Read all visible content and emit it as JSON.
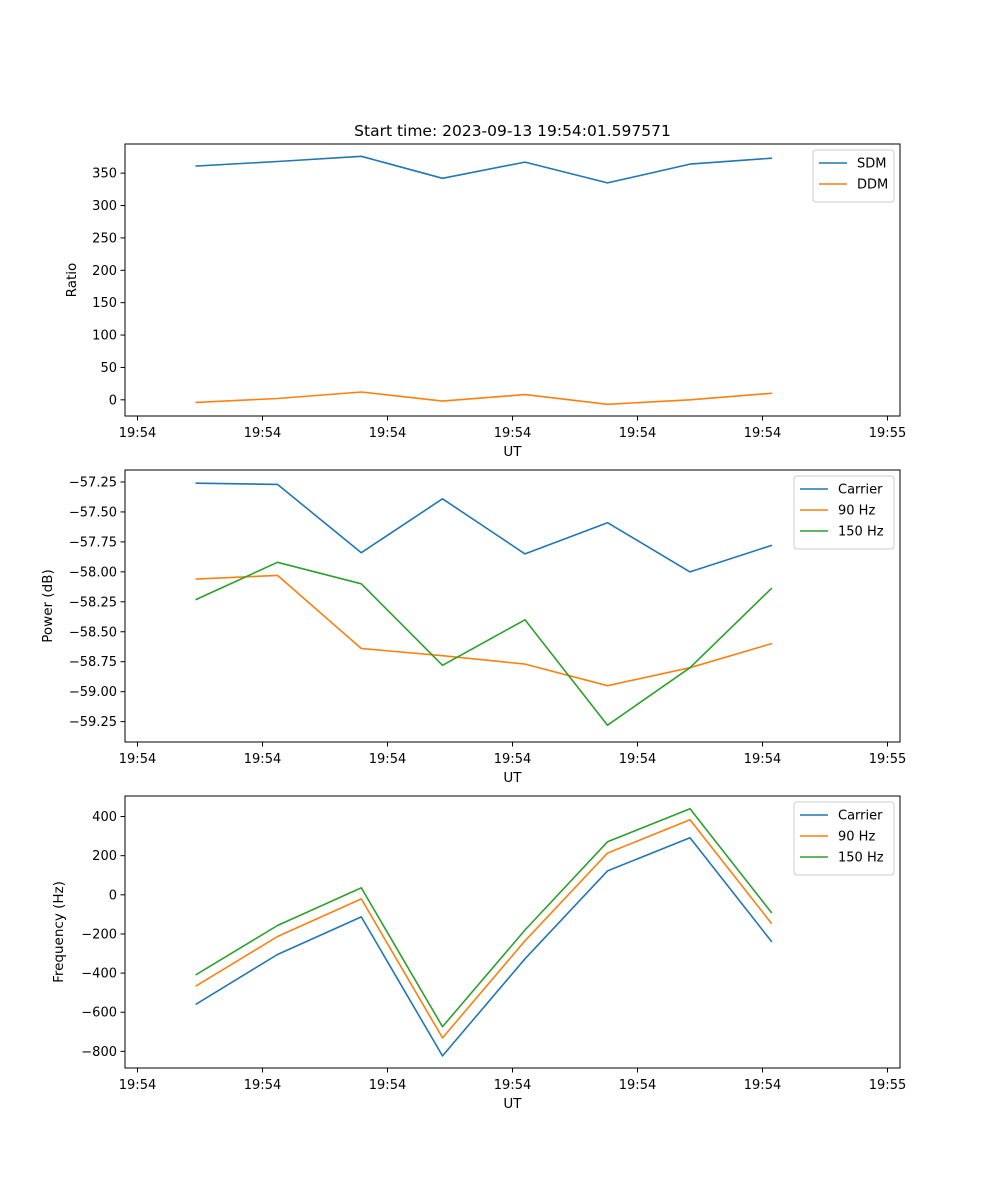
{
  "title": "Start time: 2023-09-13 19:54:01.597571",
  "chart_data": [
    {
      "type": "line",
      "xlabel": "UT",
      "ylabel": "Ratio",
      "ylim": [
        -25,
        395
      ],
      "yticks": [
        0,
        50,
        100,
        150,
        200,
        250,
        300,
        350
      ],
      "ytick_labels": [
        "0",
        "50",
        "100",
        "150",
        "200",
        "250",
        "300",
        "350"
      ],
      "xticks": [
        0,
        1,
        2,
        3,
        4,
        5,
        6
      ],
      "xtick_labels": [
        "19:54",
        "19:54",
        "19:54",
        "19:54",
        "19:54",
        "19:54",
        "19:55"
      ],
      "xlim": [
        -0.1,
        6.1
      ],
      "x": [
        0.47,
        1.12,
        1.79,
        2.44,
        3.1,
        3.76,
        4.42,
        5.07
      ],
      "legend_position": "top-right",
      "series": [
        {
          "name": "SDM",
          "color": "#1f77b4",
          "values": [
            361,
            368,
            376,
            342,
            367,
            335,
            364,
            373
          ]
        },
        {
          "name": "DDM",
          "color": "#ff7f0e",
          "values": [
            -4,
            2,
            12,
            -2,
            8,
            -7,
            0,
            10
          ]
        }
      ]
    },
    {
      "type": "line",
      "xlabel": "UT",
      "ylabel": "Power (dB)",
      "ylim": [
        -59.42,
        -57.15
      ],
      "yticks": [
        -57.25,
        -57.5,
        -57.75,
        -58.0,
        -58.25,
        -58.5,
        -58.75,
        -59.0,
        -59.25
      ],
      "ytick_labels": [
        "−57.25",
        "−57.50",
        "−57.75",
        "−58.00",
        "−58.25",
        "−58.50",
        "−58.75",
        "−59.00",
        "−59.25"
      ],
      "xticks": [
        0,
        1,
        2,
        3,
        4,
        5,
        6
      ],
      "xtick_labels": [
        "19:54",
        "19:54",
        "19:54",
        "19:54",
        "19:54",
        "19:54",
        "19:55"
      ],
      "xlim": [
        -0.1,
        6.1
      ],
      "x": [
        0.47,
        1.12,
        1.79,
        2.44,
        3.1,
        3.76,
        4.42,
        5.07
      ],
      "legend_position": "top-right",
      "series": [
        {
          "name": "Carrier",
          "color": "#1f77b4",
          "values": [
            -57.26,
            -57.27,
            -57.84,
            -57.39,
            -57.85,
            -57.59,
            -58.0,
            -57.78
          ]
        },
        {
          "name": "90 Hz",
          "color": "#ff7f0e",
          "values": [
            -58.06,
            -58.03,
            -58.64,
            -58.7,
            -58.77,
            -58.95,
            -58.8,
            -58.6
          ]
        },
        {
          "name": "150 Hz",
          "color": "#2ca02c",
          "values": [
            -58.23,
            -57.92,
            -58.1,
            -58.78,
            -58.4,
            -59.28,
            -58.8,
            -58.14
          ]
        }
      ]
    },
    {
      "type": "line",
      "xlabel": "UT",
      "ylabel": "Frequency (Hz)",
      "ylim": [
        -885,
        505
      ],
      "yticks": [
        -800,
        -600,
        -400,
        -200,
        0,
        200,
        400
      ],
      "ytick_labels": [
        "−800",
        "−600",
        "−400",
        "−200",
        "0",
        "200",
        "400"
      ],
      "xticks": [
        0,
        1,
        2,
        3,
        4,
        5,
        6
      ],
      "xtick_labels": [
        "19:54",
        "19:54",
        "19:54",
        "19:54",
        "19:54",
        "19:54",
        "19:55"
      ],
      "xlim": [
        -0.1,
        6.1
      ],
      "x": [
        0.47,
        1.12,
        1.79,
        2.44,
        3.1,
        3.76,
        4.42,
        5.07
      ],
      "legend_position": "top-right",
      "series": [
        {
          "name": "Carrier",
          "color": "#1f77b4",
          "values": [
            -558,
            -305,
            -113,
            -823,
            -327,
            122,
            292,
            -237
          ]
        },
        {
          "name": "90 Hz",
          "color": "#ff7f0e",
          "values": [
            -465,
            -213,
            -21,
            -731,
            -235,
            213,
            384,
            -145
          ]
        },
        {
          "name": "150 Hz",
          "color": "#2ca02c",
          "values": [
            -407,
            -157,
            36,
            -674,
            -180,
            271,
            440,
            -90
          ]
        }
      ]
    }
  ]
}
